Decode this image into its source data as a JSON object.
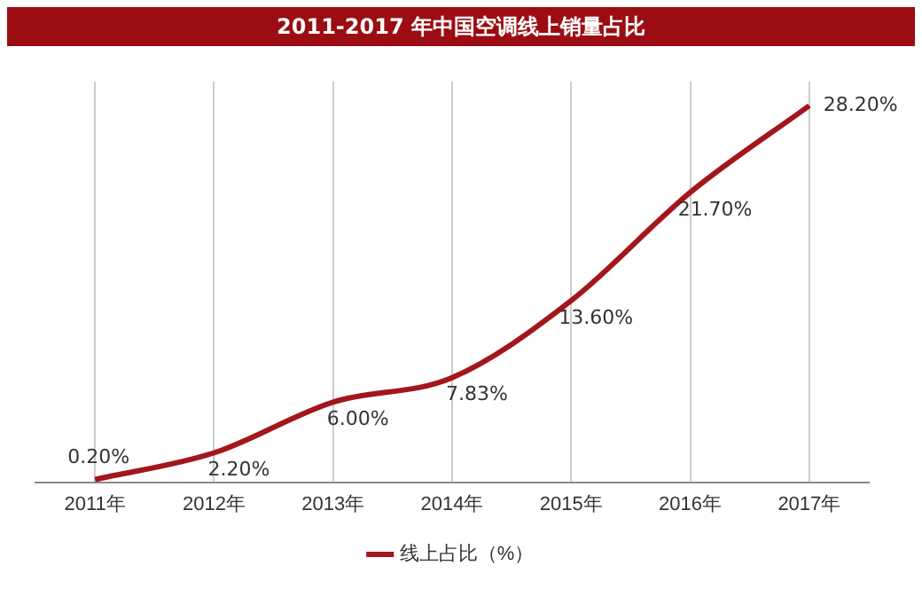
{
  "chart_data": {
    "type": "line",
    "title": "2011-2017 年中国空调线上销量占比",
    "categories": [
      "2011年",
      "2012年",
      "2013年",
      "2014年",
      "2015年",
      "2016年",
      "2017年"
    ],
    "series": [
      {
        "name": "线上占比（%）",
        "color": "#a3161b",
        "values": [
          0.2,
          2.2,
          6.0,
          7.83,
          13.6,
          21.7,
          28.2
        ],
        "value_labels": [
          "0.20%",
          "2.20%",
          "6.00%",
          "7.83%",
          "13.60%",
          "21.70%",
          "28.20%"
        ]
      }
    ],
    "grid": "x",
    "legend": "bottom",
    "marker": "none"
  }
}
